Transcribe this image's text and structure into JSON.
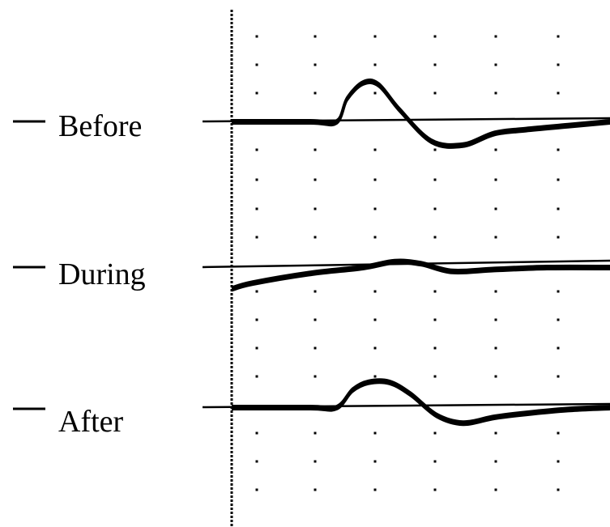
{
  "chart_data": {
    "type": "line",
    "title": "",
    "xlabel": "",
    "ylabel": "",
    "grid": "dotted",
    "series": [
      {
        "name": "Before",
        "baseline": 0,
        "x": [
          0,
          1.5,
          2,
          2.2,
          2.5,
          2.8,
          3.2,
          3.8,
          4.4,
          5,
          5.6,
          6.4,
          7.2
        ],
        "values": [
          0,
          0,
          0,
          1.2,
          2.0,
          1.9,
          0.6,
          -1.0,
          -1.2,
          -0.6,
          -0.4,
          -0.2,
          0
        ]
      },
      {
        "name": "During",
        "baseline": 0,
        "x": [
          0,
          0.4,
          1.5,
          2.5,
          3.1,
          3.6,
          4.2,
          5,
          6,
          7.2
        ],
        "values": [
          -1.1,
          -0.8,
          -0.3,
          0,
          0.3,
          0.2,
          -0.2,
          -0.1,
          0,
          0
        ]
      },
      {
        "name": "After",
        "baseline": 0,
        "x": [
          0,
          1.5,
          2,
          2.3,
          2.6,
          3.0,
          3.4,
          3.9,
          4.4,
          5.0,
          5.6,
          6.4,
          7.2
        ],
        "values": [
          0,
          0,
          0,
          0.9,
          1.3,
          1.3,
          0.7,
          -0.4,
          -0.8,
          -0.5,
          -0.3,
          -0.1,
          0
        ]
      }
    ]
  }
}
